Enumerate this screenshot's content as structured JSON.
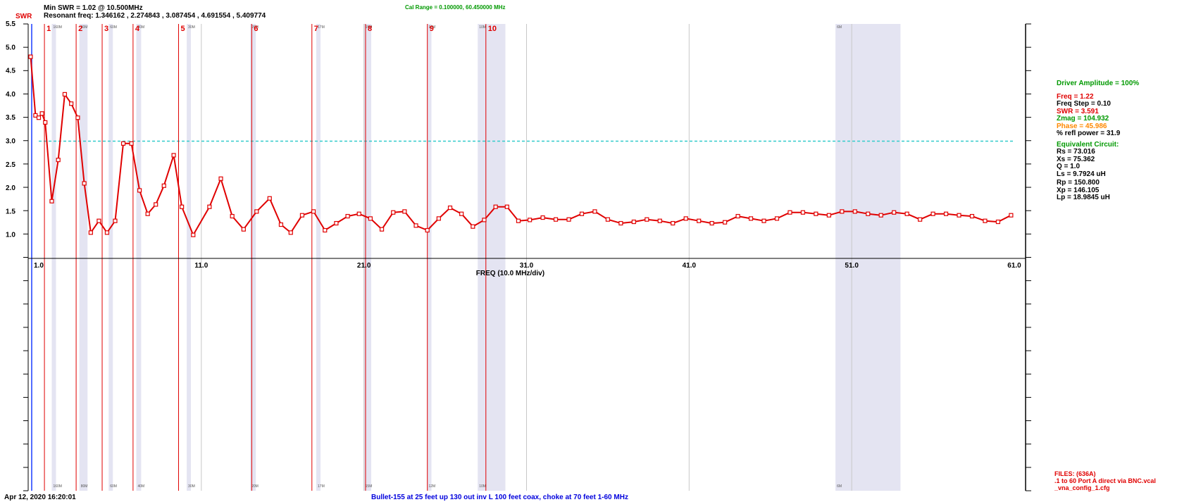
{
  "header": {
    "min_swr": "Min SWR =   1.02 @  10.500MHz",
    "resonant": "Resonant freq:  1.346162 , 2.274843 , 3.087454 , 4.691554 , 5.409774",
    "cal_range": "Cal Range = 0.100000,  60.450000 MHz",
    "y_label": "SWR"
  },
  "footer": {
    "timestamp": "Apr 12, 2020  16:20:01",
    "caption": "Bullet-155 at 25 feet up 130 out inv L 100 feet coax, choke at 70 feet  1-60 MHz"
  },
  "panel": {
    "driver_amplitude": "Driver Amplitude = 100%",
    "freq": "Freq = 1.22",
    "freq_step": "Freq Step = 0.10",
    "swr": "SWR  =   3.591",
    "zmag": "Zmag =  104.932",
    "phase": "Phase =   45.986",
    "refl_power": "% refl power = 31.9",
    "equiv_title": "Equivalent Circuit:",
    "rs": "Rs =   73.016",
    "xs": "Xs =   75.362",
    "q": "Q =  1.0",
    "ls": "Ls =     9.7924 uH",
    "rp": "Rp =  150.800",
    "xp": "Xp =  146.105",
    "lp": "Lp =   18.9845  uH"
  },
  "files": {
    "title": "FILES: (636A)",
    "line1": ".1 to 60 Port A direct via BNC.vcal",
    "line2": "_vna_config_1.cfg"
  },
  "colors": {
    "trace": "#e00000",
    "band": "#e4e4f2",
    "reference": "#33cccc",
    "green_text": "#009900",
    "orange_text": "#ff8800",
    "blue_text": "#0000dd"
  },
  "chart_data": {
    "type": "line",
    "xlabel": "FREQ (10.0 MHz/div)",
    "ylabel": "SWR",
    "xlim": [
      1.0,
      61.0
    ],
    "ylim": [
      0.5,
      5.5
    ],
    "x_ticks": [
      "1.0",
      "11.0",
      "21.0",
      "31.0",
      "41.0",
      "51.0",
      "61.0"
    ],
    "y_ticks": [
      "1.0",
      "1.5",
      "2.0",
      "2.5",
      "3.0",
      "3.5",
      "4.0",
      "4.5",
      "5.0",
      "5.5"
    ],
    "reference_line": 3.0,
    "markers": [
      {
        "label": "1",
        "freq": 1.35
      },
      {
        "label": "2",
        "freq": 3.3
      },
      {
        "label": "3",
        "freq": 4.9
      },
      {
        "label": "4",
        "freq": 6.8
      },
      {
        "label": "5",
        "freq": 9.6
      },
      {
        "label": "6",
        "freq": 14.1
      },
      {
        "label": "7",
        "freq": 17.8
      },
      {
        "label": "8",
        "freq": 21.1
      },
      {
        "label": "9",
        "freq": 24.9
      },
      {
        "label": "10",
        "freq": 28.5
      }
    ],
    "bands": [
      {
        "name": "160M",
        "from": 1.8,
        "to": 2.0
      },
      {
        "name": "80M",
        "from": 3.5,
        "to": 4.0
      },
      {
        "name": "60M",
        "from": 5.3,
        "to": 5.4
      },
      {
        "name": "40M",
        "from": 7.0,
        "to": 7.3
      },
      {
        "name": "30M",
        "from": 10.1,
        "to": 10.15
      },
      {
        "name": "20M",
        "from": 14.0,
        "to": 14.35
      },
      {
        "name": "17M",
        "from": 18.07,
        "to": 18.17
      },
      {
        "name": "15M",
        "from": 21.0,
        "to": 21.45
      },
      {
        "name": "12M",
        "from": 24.89,
        "to": 24.99
      },
      {
        "name": "10M",
        "from": 28.0,
        "to": 29.7
      },
      {
        "name": "6M",
        "from": 50.0,
        "to": 54.0
      }
    ],
    "series": [
      {
        "x": [
          0.5,
          0.8,
          1.0,
          1.2,
          1.4,
          1.8,
          2.2,
          2.6,
          3.0,
          3.4,
          3.8,
          4.2,
          4.7,
          5.2,
          5.7,
          6.2,
          6.7,
          7.2,
          7.7,
          8.2,
          8.7,
          9.3,
          9.8,
          10.5,
          11.5,
          12.2,
          12.9,
          13.6,
          14.4,
          15.2,
          15.9,
          16.5,
          17.2,
          17.9,
          18.6,
          19.3,
          20.0,
          20.7,
          21.4,
          22.1,
          22.8,
          23.5,
          24.2,
          24.9,
          25.6,
          26.3,
          27.0,
          27.7,
          28.4,
          29.1,
          29.8,
          30.5,
          31.2,
          32.0,
          32.8,
          33.6,
          34.4,
          35.2,
          36.0,
          36.8,
          37.6,
          38.4,
          39.2,
          40.0,
          40.8,
          41.6,
          42.4,
          43.2,
          44.0,
          44.8,
          45.6,
          46.4,
          47.2,
          48.0,
          48.8,
          49.6,
          50.4,
          51.2,
          52.0,
          52.8,
          53.6,
          54.4,
          55.2,
          56.0,
          56.8,
          57.6,
          58.4,
          59.2,
          60.0,
          60.8
        ],
        "y": [
          4.8,
          3.55,
          3.5,
          3.59,
          3.4,
          1.72,
          2.6,
          4.0,
          3.8,
          3.5,
          2.1,
          1.05,
          1.3,
          1.05,
          1.3,
          2.95,
          2.95,
          1.95,
          1.45,
          1.65,
          2.05,
          2.7,
          1.6,
          1.0,
          1.6,
          2.2,
          1.4,
          1.12,
          1.5,
          1.78,
          1.22,
          1.05,
          1.42,
          1.5,
          1.1,
          1.25,
          1.4,
          1.45,
          1.35,
          1.12,
          1.48,
          1.5,
          1.2,
          1.1,
          1.35,
          1.58,
          1.45,
          1.18,
          1.32,
          1.6,
          1.6,
          1.3,
          1.32,
          1.37,
          1.33,
          1.33,
          1.45,
          1.5,
          1.33,
          1.25,
          1.28,
          1.33,
          1.3,
          1.25,
          1.35,
          1.3,
          1.25,
          1.27,
          1.4,
          1.35,
          1.3,
          1.35,
          1.48,
          1.48,
          1.45,
          1.42,
          1.5,
          1.5,
          1.45,
          1.42,
          1.48,
          1.45,
          1.33,
          1.45,
          1.45,
          1.42,
          1.4,
          1.3,
          1.28,
          1.42
        ]
      }
    ]
  }
}
